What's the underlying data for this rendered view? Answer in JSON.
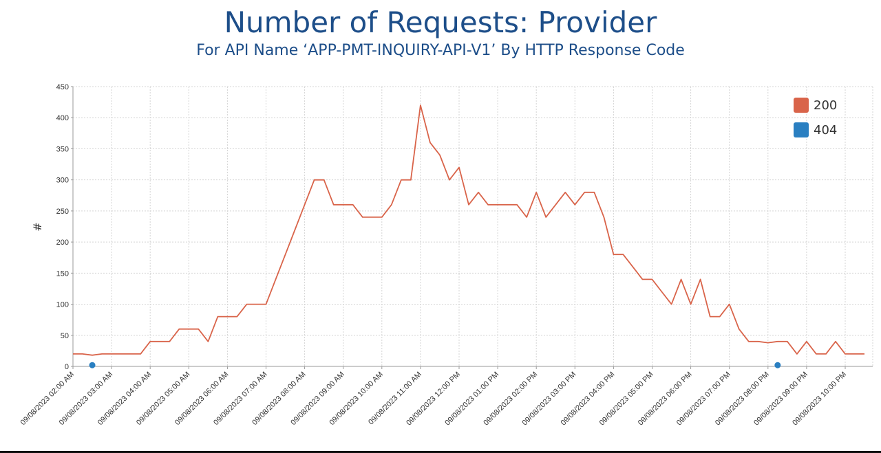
{
  "chart_data": {
    "type": "line",
    "title": "Number of Requests: Provider",
    "subtitle": "For API Name ‘APP-PMT-INQUIRY-API-V1’ By HTTP Response Code",
    "ylabel": "#",
    "xlabel": "",
    "ylim": [
      0,
      450
    ],
    "yticks": [
      0,
      50,
      100,
      150,
      200,
      250,
      300,
      350,
      400,
      450
    ],
    "x_tick_labels": [
      "09/08/2023 02:00 AM",
      "09/08/2023 03:00 AM",
      "09/08/2023 04:00 AM",
      "09/08/2023 05:00 AM",
      "09/08/2023 06:00 AM",
      "09/08/2023 07:00 AM",
      "09/08/2023 08:00 AM",
      "09/08/2023 09:00 AM",
      "09/08/2023 10:00 AM",
      "09/08/2023 11:00 AM",
      "09/08/2023 12:00 PM",
      "09/08/2023 01:00 PM",
      "09/08/2023 02:00 PM",
      "09/08/2023 03:00 PM",
      "09/08/2023 04:00 PM",
      "09/08/2023 05:00 PM",
      "09/08/2023 06:00 PM",
      "09/08/2023 07:00 PM",
      "09/08/2023 08:00 PM",
      "09/08/2023 09:00 PM",
      "09/08/2023 10:00 PM"
    ],
    "x_interval_minutes": 15,
    "grid": true,
    "legend_position": "top-right",
    "series": [
      {
        "name": "200",
        "color": "#d9644a",
        "mode": "line",
        "values": [
          20,
          20,
          18,
          20,
          20,
          20,
          20,
          20,
          40,
          40,
          40,
          60,
          60,
          60,
          40,
          80,
          80,
          80,
          100,
          100,
          100,
          140,
          180,
          220,
          260,
          300,
          300,
          260,
          260,
          260,
          240,
          240,
          240,
          260,
          300,
          300,
          420,
          360,
          340,
          300,
          320,
          260,
          280,
          260,
          260,
          260,
          260,
          240,
          280,
          240,
          260,
          280,
          260,
          280,
          280,
          240,
          180,
          180,
          160,
          140,
          140,
          120,
          100,
          140,
          100,
          140,
          80,
          80,
          100,
          60,
          40,
          40,
          38,
          40,
          40,
          20,
          40,
          20,
          20,
          40,
          20,
          20,
          20
        ]
      },
      {
        "name": "404",
        "color": "#2a7fc1",
        "mode": "points",
        "points": [
          {
            "x_index": 2,
            "value": 2
          },
          {
            "x_index": 73,
            "value": 2
          }
        ]
      }
    ]
  }
}
